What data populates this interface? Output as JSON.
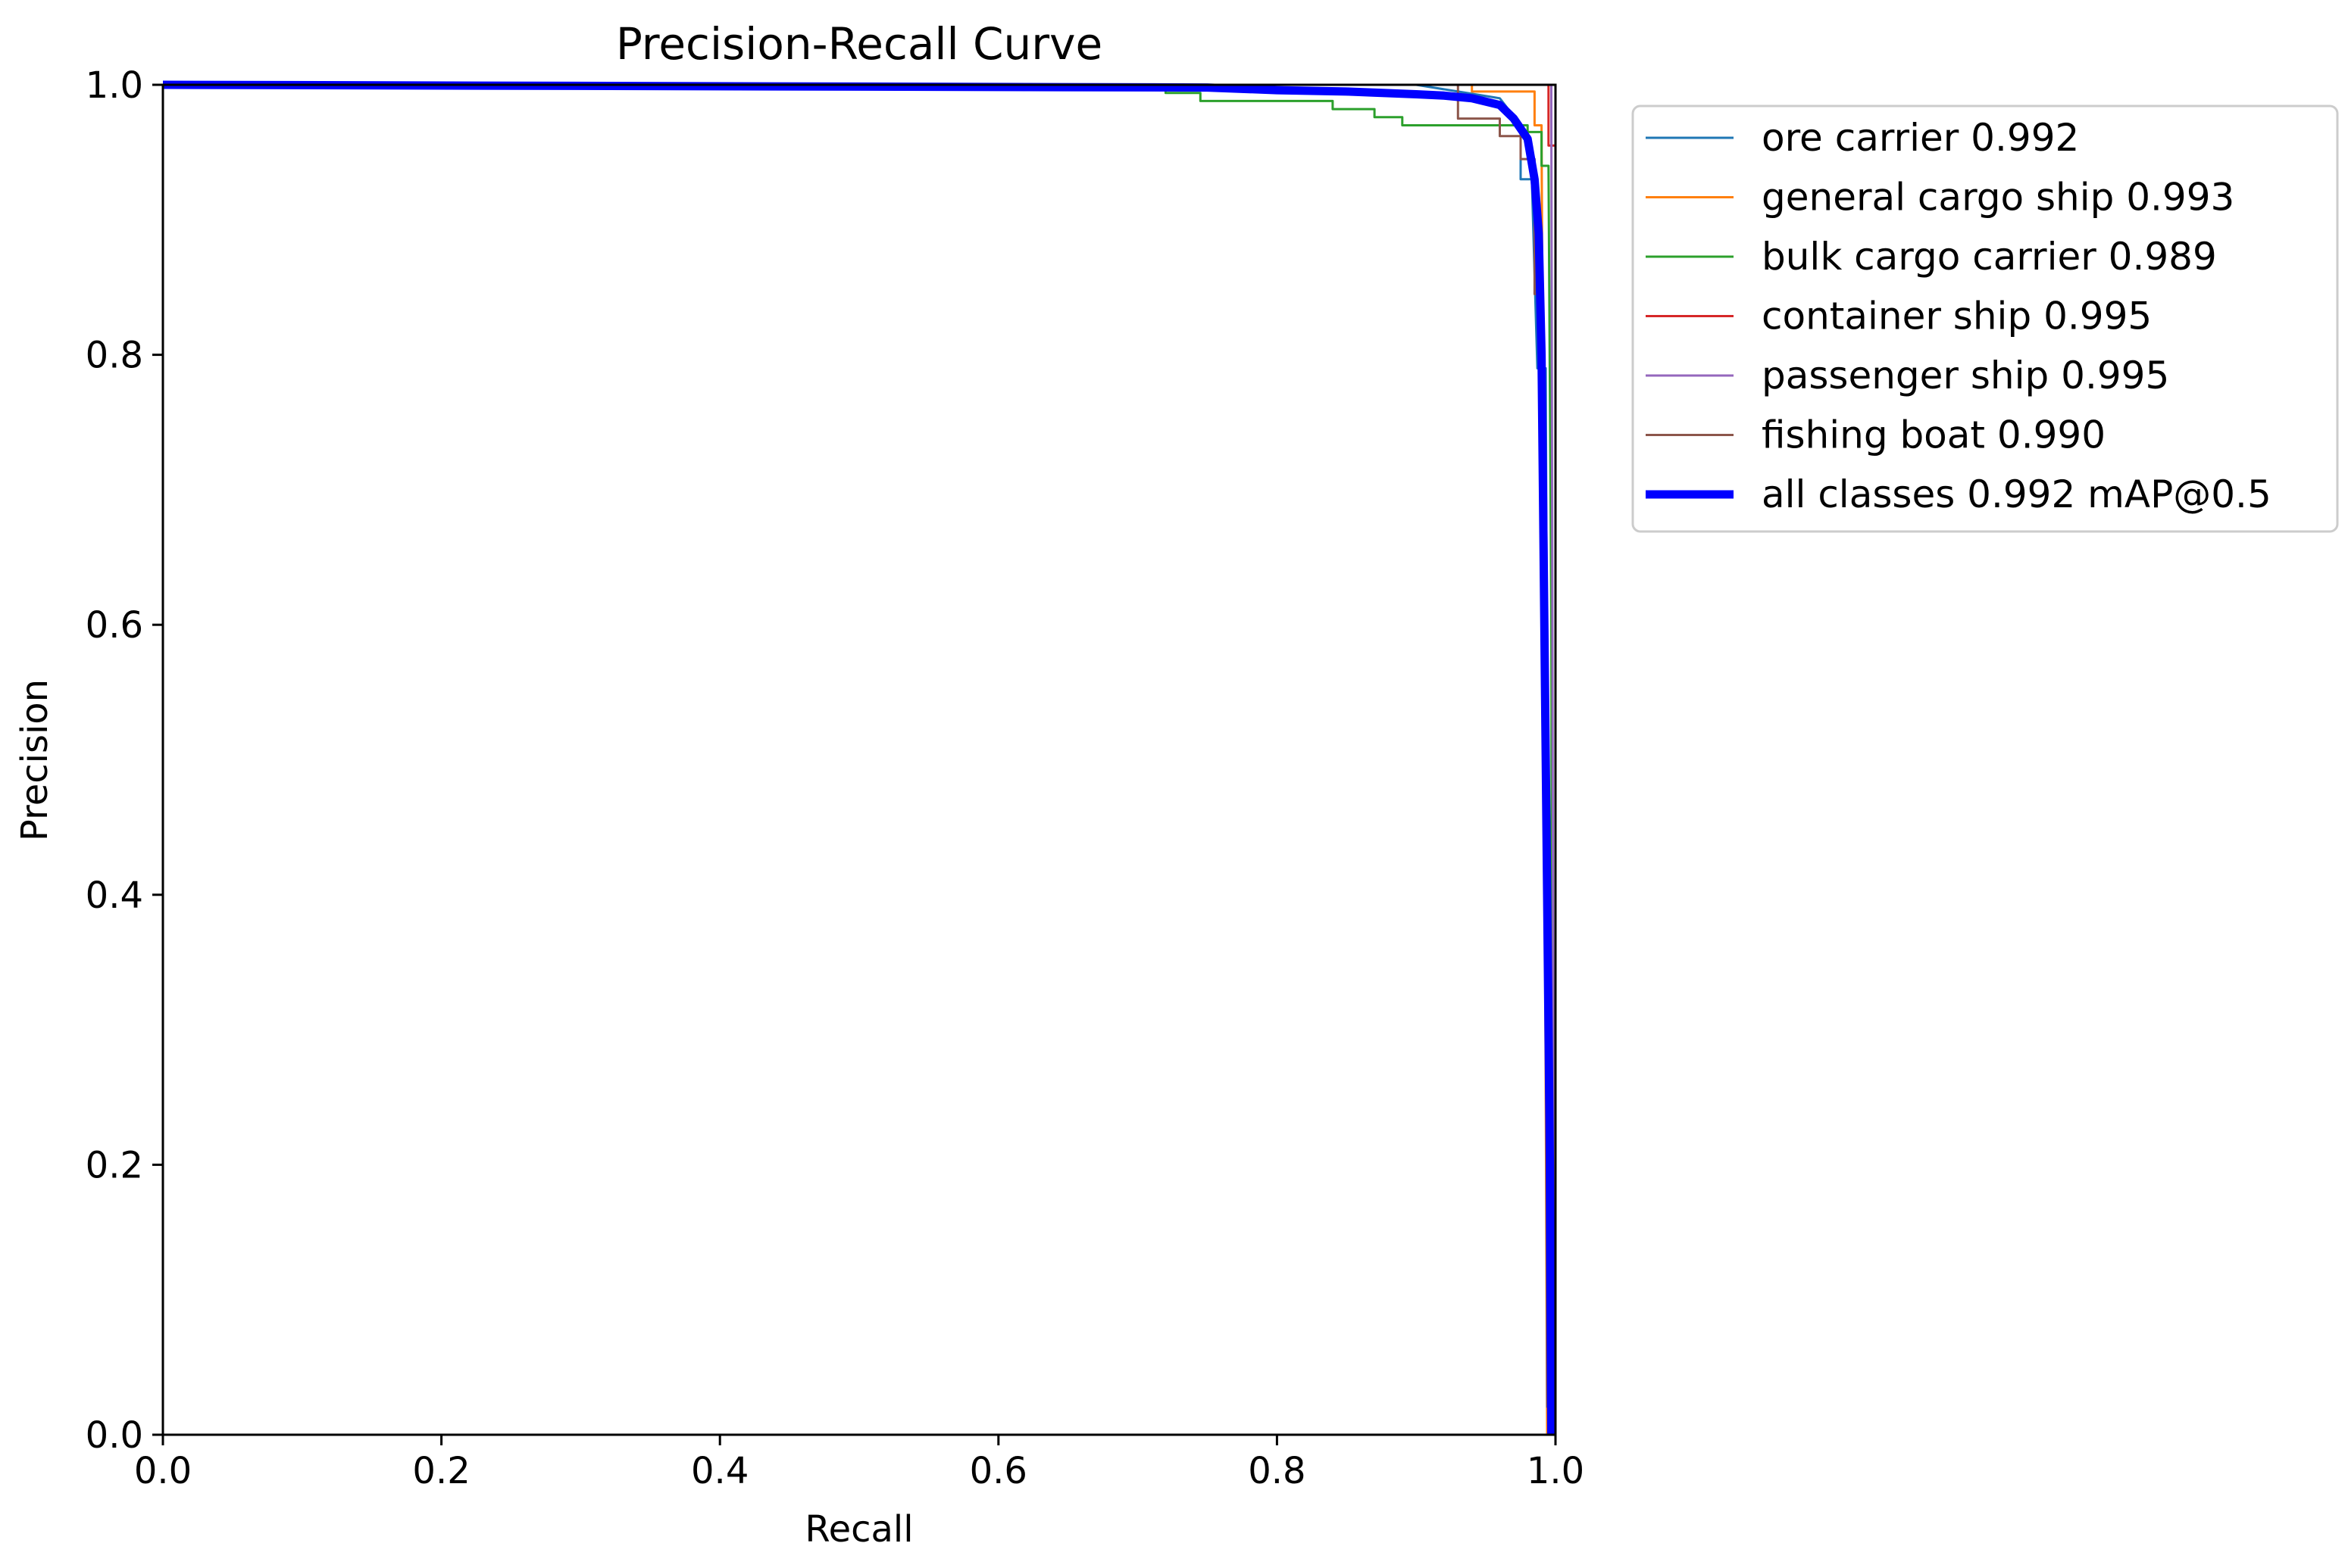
{
  "chart_data": {
    "type": "line",
    "title": "Precision-Recall Curve",
    "xlabel": "Recall",
    "ylabel": "Precision",
    "xlim": [
      0,
      1
    ],
    "ylim": [
      0,
      1
    ],
    "x_ticks": [
      "0.0",
      "0.2",
      "0.4",
      "0.6",
      "0.8",
      "1.0"
    ],
    "y_ticks": [
      "0.0",
      "0.2",
      "0.4",
      "0.6",
      "0.8",
      "1.0"
    ],
    "grid": false,
    "legend_position": "outside-right-top",
    "series": [
      {
        "name": "ore carrier 0.992",
        "color": "#1f77b4",
        "points": [
          [
            0,
            1.0
          ],
          [
            0.9,
            1.0
          ],
          [
            0.93,
            0.995
          ],
          [
            0.96,
            0.99
          ],
          [
            0.975,
            0.97
          ],
          [
            0.975,
            0.93
          ],
          [
            0.983,
            0.93
          ],
          [
            0.985,
            0.86
          ],
          [
            0.987,
            0.79
          ],
          [
            0.993,
            0.79
          ],
          [
            0.995,
            0.3
          ],
          [
            0.996,
            0.0
          ]
        ]
      },
      {
        "name": "general cargo ship 0.993",
        "color": "#ff7f0e",
        "points": [
          [
            0,
            1.0
          ],
          [
            0.94,
            1.0
          ],
          [
            0.94,
            0.995
          ],
          [
            0.985,
            0.995
          ],
          [
            0.985,
            0.97
          ],
          [
            0.99,
            0.97
          ],
          [
            0.992,
            0.5
          ],
          [
            0.994,
            0.0
          ]
        ]
      },
      {
        "name": "bulk cargo carrier 0.989",
        "color": "#2ca02c",
        "points": [
          [
            0,
            1.0
          ],
          [
            0.72,
            1.0
          ],
          [
            0.72,
            0.994
          ],
          [
            0.745,
            0.994
          ],
          [
            0.745,
            0.988
          ],
          [
            0.84,
            0.988
          ],
          [
            0.84,
            0.982
          ],
          [
            0.87,
            0.982
          ],
          [
            0.87,
            0.976
          ],
          [
            0.89,
            0.976
          ],
          [
            0.89,
            0.97
          ],
          [
            0.98,
            0.97
          ],
          [
            0.98,
            0.965
          ],
          [
            0.99,
            0.965
          ],
          [
            0.99,
            0.94
          ],
          [
            0.995,
            0.94
          ],
          [
            0.997,
            0.6
          ],
          [
            0.998,
            0.0
          ]
        ]
      },
      {
        "name": "container ship 0.995",
        "color": "#d62728",
        "points": [
          [
            0,
            1.0
          ],
          [
            0.995,
            1.0
          ],
          [
            0.995,
            0.955
          ],
          [
            1.0,
            0.955
          ],
          [
            1.0,
            0.0
          ]
        ]
      },
      {
        "name": "passenger ship 0.995",
        "color": "#9467bd",
        "points": [
          [
            0,
            1.0
          ],
          [
            0.997,
            1.0
          ],
          [
            0.997,
            0.98
          ],
          [
            0.998,
            0.5
          ],
          [
            0.999,
            0.0
          ]
        ]
      },
      {
        "name": "fishing boat 0.990",
        "color": "#8c564b",
        "points": [
          [
            0,
            1.0
          ],
          [
            0.93,
            1.0
          ],
          [
            0.93,
            0.975
          ],
          [
            0.96,
            0.975
          ],
          [
            0.96,
            0.962
          ],
          [
            0.975,
            0.962
          ],
          [
            0.975,
            0.945
          ],
          [
            0.985,
            0.945
          ],
          [
            0.985,
            0.845
          ],
          [
            0.99,
            0.845
          ],
          [
            0.993,
            0.45
          ],
          [
            0.994,
            0.02
          ]
        ]
      },
      {
        "name": "all classes 0.992 mAP@0.5",
        "color": "#0000ff",
        "thick": true,
        "points": [
          [
            0,
            1.0
          ],
          [
            0.75,
            0.998
          ],
          [
            0.8,
            0.996
          ],
          [
            0.85,
            0.995
          ],
          [
            0.9,
            0.993
          ],
          [
            0.92,
            0.992
          ],
          [
            0.94,
            0.99
          ],
          [
            0.96,
            0.985
          ],
          [
            0.97,
            0.975
          ],
          [
            0.98,
            0.96
          ],
          [
            0.985,
            0.93
          ],
          [
            0.988,
            0.89
          ],
          [
            0.99,
            0.8
          ],
          [
            0.992,
            0.6
          ],
          [
            0.994,
            0.4
          ],
          [
            0.996,
            0.2
          ],
          [
            0.997,
            0.0
          ]
        ]
      }
    ]
  }
}
